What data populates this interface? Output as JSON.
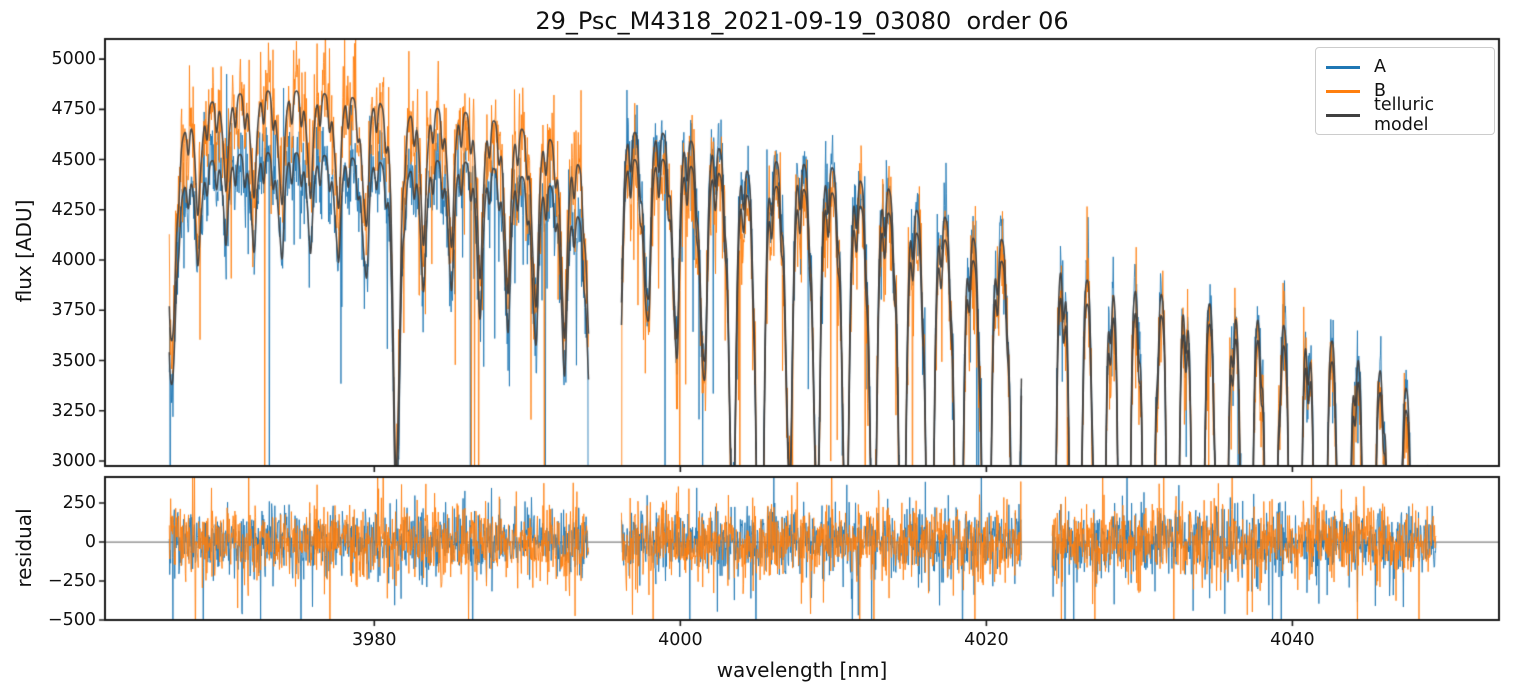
{
  "chart_data": {
    "type": "line",
    "title": "29_Psc_M4318_2021-09-19_03080  order 06",
    "xlabel": "wavelength [nm]",
    "ylabel_top": "flux [ADU]",
    "ylabel_bottom": "residual",
    "background_color": "#ffffff",
    "spine_color": "#1a1a1a",
    "zero_line_color": "#808080",
    "legend_position": "upper right",
    "grid": false,
    "xlim": [
      3962.4,
      4053.5
    ],
    "ylim_top": [
      2975,
      5100
    ],
    "ylim_bottom": [
      -500,
      417
    ],
    "x_ticks": [
      {
        "value": 3980,
        "label": "3980"
      },
      {
        "value": 4000,
        "label": "4000"
      },
      {
        "value": 4020,
        "label": "4020"
      },
      {
        "value": 4040,
        "label": "4040"
      }
    ],
    "y_ticks_top": [
      {
        "value": 5000,
        "label": "5000"
      },
      {
        "value": 4750,
        "label": "4750"
      },
      {
        "value": 4500,
        "label": "4500"
      },
      {
        "value": 4250,
        "label": "4250"
      },
      {
        "value": 4000,
        "label": "4000"
      },
      {
        "value": 3750,
        "label": "3750"
      },
      {
        "value": 3500,
        "label": "3500"
      },
      {
        "value": 3250,
        "label": "3250"
      },
      {
        "value": 3000,
        "label": "3000"
      }
    ],
    "y_ticks_bottom": [
      {
        "value": 250,
        "label": "250"
      },
      {
        "value": 0,
        "label": "0"
      },
      {
        "value": -250,
        "label": "−250"
      },
      {
        "value": -500,
        "label": "−500"
      }
    ],
    "series": [
      {
        "name": "A",
        "color": "#1f77b4",
        "noise_sigma_adu": 90,
        "residual_sigma": 105,
        "seed": 19,
        "residual_seed": 101
      },
      {
        "name": "B",
        "color": "#ff7f0e",
        "noise_sigma_adu": 130,
        "residual_sigma": 120,
        "seed": 7,
        "residual_seed": 55
      },
      {
        "name": "telluric model",
        "color": "#404040",
        "line_width": 1.5
      }
    ],
    "sample_step_nm": 0.03,
    "segments": [
      {
        "x_start": 3966.6,
        "x_end": 3994.0,
        "continuum_A": [
          [
            3966.6,
            4340
          ],
          [
            3968,
            4480
          ],
          [
            3970,
            4550
          ],
          [
            3973,
            4575
          ],
          [
            3977,
            4560
          ],
          [
            3981,
            4555
          ],
          [
            3985,
            4545
          ],
          [
            3988,
            4520
          ],
          [
            3990,
            4480
          ],
          [
            3992,
            4420
          ],
          [
            3994,
            4260
          ]
        ],
        "continuum_B": [
          [
            3966.6,
            4620
          ],
          [
            3968,
            4760
          ],
          [
            3970,
            4850
          ],
          [
            3973,
            4885
          ],
          [
            3977,
            4870
          ],
          [
            3981,
            4850
          ],
          [
            3985,
            4800
          ],
          [
            3988,
            4760
          ],
          [
            3990,
            4720
          ],
          [
            3992,
            4650
          ],
          [
            3994,
            4545
          ]
        ]
      },
      {
        "x_start": 3996.15,
        "x_end": 4022.3,
        "continuum_A": [
          [
            3996.15,
            4730
          ],
          [
            4000,
            4705
          ],
          [
            4004,
            4680
          ],
          [
            4008,
            4640
          ],
          [
            4012,
            4580
          ],
          [
            4015,
            4500
          ],
          [
            4018,
            4430
          ],
          [
            4020,
            4390
          ],
          [
            4022.3,
            4340
          ]
        ],
        "continuum_B": [
          [
            3996.15,
            4590
          ],
          [
            4000,
            4575
          ],
          [
            4004,
            4555
          ],
          [
            4008,
            4510
          ],
          [
            4012,
            4450
          ],
          [
            4015,
            4380
          ],
          [
            4018,
            4310
          ],
          [
            4020,
            4270
          ],
          [
            4022.3,
            4230
          ]
        ]
      },
      {
        "x_start": 4024.3,
        "x_end": 4049.4,
        "continuum_A": [
          [
            4024.3,
            4580
          ],
          [
            4027,
            4600
          ],
          [
            4030,
            4570
          ],
          [
            4033,
            4510
          ],
          [
            4036,
            4450
          ],
          [
            4039,
            4370
          ],
          [
            4042,
            4280
          ],
          [
            4044,
            4210
          ],
          [
            4046,
            4090
          ],
          [
            4047.5,
            3980
          ],
          [
            4048.5,
            3820
          ],
          [
            4049.4,
            3250
          ]
        ],
        "continuum_B": [
          [
            4024.3,
            4430
          ],
          [
            4027,
            4460
          ],
          [
            4030,
            4440
          ],
          [
            4033,
            4390
          ],
          [
            4036,
            4330
          ],
          [
            4039,
            4250
          ],
          [
            4042,
            4160
          ],
          [
            4044,
            4080
          ],
          [
            4046,
            3960
          ],
          [
            4047.5,
            3850
          ],
          [
            4048.5,
            3680
          ],
          [
            4049.4,
            3150
          ]
        ]
      }
    ],
    "telluric_lines": [
      [
        3966.8,
        0.18
      ],
      [
        3968.5,
        0.07
      ],
      [
        3970.3,
        0.06
      ],
      [
        3972.1,
        0.07
      ],
      [
        3973.9,
        0.08
      ],
      [
        3975.8,
        0.07
      ],
      [
        3977.6,
        0.08
      ],
      [
        3979.4,
        0.1
      ],
      [
        3981.45,
        0.3
      ],
      [
        3983.2,
        0.1
      ],
      [
        3985.0,
        0.1
      ],
      [
        3986.9,
        0.12
      ],
      [
        3988.7,
        0.13
      ],
      [
        3990.5,
        0.14
      ],
      [
        3992.4,
        0.15
      ],
      [
        3994.1,
        0.18
      ],
      [
        3996.0,
        0.16
      ],
      [
        3997.8,
        0.15
      ],
      [
        3999.7,
        0.17
      ],
      [
        4001.5,
        0.2
      ],
      [
        4003.4,
        0.32
      ],
      [
        4005.2,
        0.48
      ],
      [
        4007.1,
        0.28
      ],
      [
        4008.9,
        0.3
      ],
      [
        4010.8,
        0.33
      ],
      [
        4012.6,
        0.36
      ],
      [
        4014.5,
        0.42
      ],
      [
        4016.3,
        0.48
      ],
      [
        4018.2,
        0.54
      ],
      [
        4020.0,
        0.6
      ],
      [
        4021.9,
        0.6
      ],
      [
        4024.2,
        0.75
      ],
      [
        4025.8,
        0.95
      ],
      [
        4027.4,
        1.0
      ],
      [
        4029.0,
        1.0
      ],
      [
        4030.6,
        1.0
      ],
      [
        4032.2,
        1.0
      ],
      [
        4033.8,
        1.0
      ],
      [
        4035.4,
        1.0
      ],
      [
        4037.0,
        1.0
      ],
      [
        4038.6,
        1.0
      ],
      [
        4040.2,
        1.0
      ],
      [
        4041.8,
        1.0
      ],
      [
        4043.4,
        1.0
      ],
      [
        4045.0,
        1.0
      ],
      [
        4046.6,
        1.0
      ],
      [
        4048.2,
        1.0
      ],
      [
        4049.7,
        1.0
      ]
    ],
    "telluric_line_width_nm": 0.3,
    "telluric_wing_scale": 2.6,
    "telluric_wing_depth": 0.22,
    "micro_lines": {
      "origin": 3966.0,
      "spacing_nm": 0.615,
      "depth": 0.04,
      "width_nm": 0.12
    },
    "noise": {
      "down_prob": 0.05,
      "down_min": 120,
      "down_scale": 300,
      "extreme_frac": 0.1,
      "extreme_extra": 1800,
      "up_prob": 0.015,
      "up_min": 100,
      "up_scale": 150
    },
    "residual_noise": {
      "down_prob": 0.035,
      "down_min": 100,
      "down_scale": 180,
      "up_prob": 0.025,
      "up_min": 80,
      "up_scale": 130
    },
    "edge_spikes": [
      {
        "seg": 0,
        "series": "A",
        "index": 2,
        "delta": -1500
      },
      {
        "seg": 0,
        "series": "A",
        "index": -1,
        "delta": -2600
      },
      {
        "seg": 1,
        "series": "B",
        "index": 0,
        "delta": -2700
      },
      {
        "seg": 1,
        "series": "A",
        "index": -2,
        "delta": -1700
      },
      {
        "seg": 2,
        "series": "B",
        "index": 1,
        "delta": -2700
      },
      {
        "seg": 2,
        "series": "A",
        "index": 4,
        "delta": 550
      },
      {
        "seg": 2,
        "series": "A",
        "index": 6,
        "delta": -1600
      }
    ]
  }
}
